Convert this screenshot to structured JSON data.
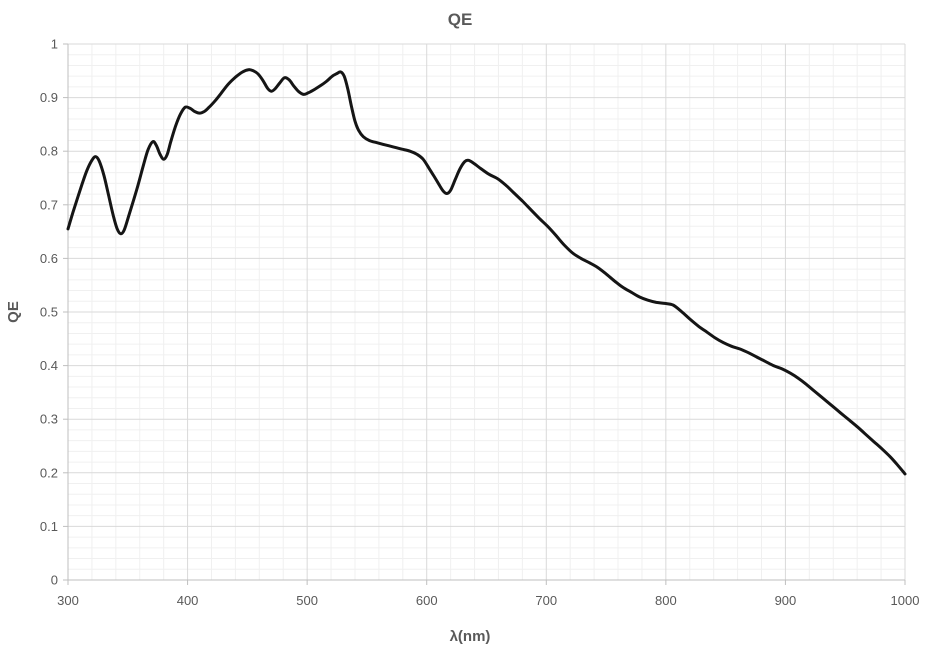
{
  "chart_data": {
    "type": "line",
    "title": "QE",
    "xlabel": "λ(nm)",
    "ylabel": "QE",
    "xlim": [
      300,
      1000
    ],
    "ylim": [
      0,
      1
    ],
    "x_major_ticks": [
      300,
      400,
      500,
      600,
      700,
      800,
      900,
      1000
    ],
    "x_tick_labels": [
      "300",
      "400",
      "500",
      "600",
      "700",
      "800",
      "900",
      "1000"
    ],
    "x_minor_step": 20,
    "y_major_ticks": [
      0,
      0.1,
      0.2,
      0.3,
      0.4,
      0.5,
      0.6,
      0.7,
      0.8,
      0.9,
      1
    ],
    "y_tick_labels": [
      "0",
      "0.1",
      "0.2",
      "0.3",
      "0.4",
      "0.5",
      "0.6",
      "0.7",
      "0.8",
      "0.9",
      "1"
    ],
    "y_minor_step": 0.02,
    "grid": "major+minor",
    "legend": "none",
    "series": [
      {
        "name": "QE",
        "points": [
          [
            300,
            0.655
          ],
          [
            304,
            0.685
          ],
          [
            308,
            0.713
          ],
          [
            312,
            0.74
          ],
          [
            316,
            0.765
          ],
          [
            320,
            0.783
          ],
          [
            323,
            0.79
          ],
          [
            326,
            0.782
          ],
          [
            330,
            0.755
          ],
          [
            334,
            0.717
          ],
          [
            338,
            0.679
          ],
          [
            341,
            0.656
          ],
          [
            344,
            0.646
          ],
          [
            347,
            0.653
          ],
          [
            351,
            0.681
          ],
          [
            355,
            0.71
          ],
          [
            359,
            0.74
          ],
          [
            363,
            0.773
          ],
          [
            367,
            0.803
          ],
          [
            371,
            0.818
          ],
          [
            374,
            0.81
          ],
          [
            377,
            0.794
          ],
          [
            380,
            0.785
          ],
          [
            383,
            0.794
          ],
          [
            386,
            0.818
          ],
          [
            390,
            0.847
          ],
          [
            394,
            0.869
          ],
          [
            398,
            0.882
          ],
          [
            402,
            0.88
          ],
          [
            406,
            0.874
          ],
          [
            410,
            0.871
          ],
          [
            414,
            0.874
          ],
          [
            418,
            0.882
          ],
          [
            423,
            0.894
          ],
          [
            428,
            0.908
          ],
          [
            434,
            0.925
          ],
          [
            440,
            0.938
          ],
          [
            446,
            0.948
          ],
          [
            451,
            0.952
          ],
          [
            455,
            0.95
          ],
          [
            459,
            0.944
          ],
          [
            463,
            0.932
          ],
          [
            467,
            0.917
          ],
          [
            470,
            0.912
          ],
          [
            473,
            0.916
          ],
          [
            477,
            0.927
          ],
          [
            481,
            0.937
          ],
          [
            485,
            0.933
          ],
          [
            489,
            0.921
          ],
          [
            493,
            0.911
          ],
          [
            497,
            0.906
          ],
          [
            501,
            0.909
          ],
          [
            506,
            0.915
          ],
          [
            511,
            0.922
          ],
          [
            516,
            0.93
          ],
          [
            521,
            0.94
          ],
          [
            525,
            0.945
          ],
          [
            528,
            0.948
          ],
          [
            531,
            0.94
          ],
          [
            534,
            0.916
          ],
          [
            537,
            0.884
          ],
          [
            540,
            0.856
          ],
          [
            543,
            0.839
          ],
          [
            547,
            0.827
          ],
          [
            552,
            0.82
          ],
          [
            558,
            0.816
          ],
          [
            565,
            0.812
          ],
          [
            572,
            0.808
          ],
          [
            579,
            0.804
          ],
          [
            586,
            0.8
          ],
          [
            592,
            0.794
          ],
          [
            597,
            0.785
          ],
          [
            602,
            0.768
          ],
          [
            607,
            0.75
          ],
          [
            611,
            0.735
          ],
          [
            614,
            0.725
          ],
          [
            617,
            0.721
          ],
          [
            620,
            0.727
          ],
          [
            624,
            0.748
          ],
          [
            628,
            0.768
          ],
          [
            632,
            0.781
          ],
          [
            635,
            0.783
          ],
          [
            639,
            0.778
          ],
          [
            645,
            0.768
          ],
          [
            652,
            0.757
          ],
          [
            659,
            0.749
          ],
          [
            666,
            0.737
          ],
          [
            673,
            0.722
          ],
          [
            680,
            0.707
          ],
          [
            687,
            0.691
          ],
          [
            694,
            0.675
          ],
          [
            701,
            0.66
          ],
          [
            708,
            0.643
          ],
          [
            715,
            0.625
          ],
          [
            722,
            0.61
          ],
          [
            729,
            0.6
          ],
          [
            736,
            0.592
          ],
          [
            743,
            0.583
          ],
          [
            750,
            0.571
          ],
          [
            757,
            0.558
          ],
          [
            764,
            0.546
          ],
          [
            771,
            0.537
          ],
          [
            778,
            0.528
          ],
          [
            785,
            0.522
          ],
          [
            792,
            0.518
          ],
          [
            799,
            0.516
          ],
          [
            806,
            0.513
          ],
          [
            813,
            0.501
          ],
          [
            820,
            0.487
          ],
          [
            827,
            0.474
          ],
          [
            834,
            0.463
          ],
          [
            841,
            0.452
          ],
          [
            848,
            0.443
          ],
          [
            855,
            0.436
          ],
          [
            862,
            0.431
          ],
          [
            869,
            0.424
          ],
          [
            876,
            0.416
          ],
          [
            883,
            0.408
          ],
          [
            890,
            0.4
          ],
          [
            897,
            0.394
          ],
          [
            904,
            0.386
          ],
          [
            911,
            0.376
          ],
          [
            918,
            0.364
          ],
          [
            925,
            0.351
          ],
          [
            932,
            0.338
          ],
          [
            939,
            0.325
          ],
          [
            946,
            0.312
          ],
          [
            953,
            0.299
          ],
          [
            960,
            0.286
          ],
          [
            967,
            0.272
          ],
          [
            974,
            0.258
          ],
          [
            981,
            0.244
          ],
          [
            988,
            0.229
          ],
          [
            994,
            0.214
          ],
          [
            1000,
            0.198
          ]
        ]
      }
    ]
  },
  "style": {
    "line_color": "#151515",
    "major_grid_color": "#d9d9d9",
    "minor_grid_color": "#f0f0f0",
    "axis_line_color": "#bfbfbf",
    "text_color": "#595959",
    "background": "#ffffff"
  }
}
